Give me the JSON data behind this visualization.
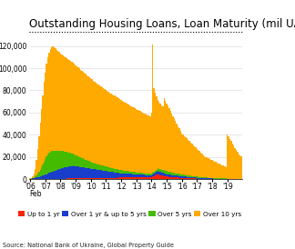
{
  "title": "Outstanding Housing Loans, Loan Maturity (mil UAH)",
  "source": "Source: National Bank of Ukraine, Global Property Guide",
  "xlabel_note": "Feb",
  "colors": {
    "up_to_1yr": "#ff2200",
    "1yr_to_5yr": "#1a3ecc",
    "over_5yr": "#44bb00",
    "over_10yr": "#ffaa00"
  },
  "legend_labels": [
    "Up to 1 yr",
    "Over 1 yr & up to 5 yrs",
    "Over 5 yrs",
    "Over 10 yrs"
  ],
  "yticks": [
    0,
    20000,
    40000,
    60000,
    80000,
    100000,
    120000
  ],
  "background_color": "#ffffff",
  "title_fontsize": 8.5,
  "years": [
    "'06",
    "'07",
    "'08",
    "'09",
    "'10",
    "'11",
    "'12",
    "'13",
    "'14",
    "'15",
    "'16",
    "'17",
    "'18",
    "'19"
  ],
  "year_positions": [
    0,
    12,
    24,
    36,
    48,
    60,
    72,
    84,
    96,
    108,
    120,
    132,
    144,
    156
  ],
  "data_up1": [
    150,
    160,
    170,
    180,
    200,
    210,
    220,
    230,
    240,
    250,
    260,
    280,
    300,
    320,
    340,
    360,
    380,
    400,
    420,
    440,
    460,
    480,
    500,
    520,
    540,
    560,
    580,
    600,
    620,
    640,
    660,
    680,
    700,
    720,
    740,
    760,
    780,
    800,
    820,
    840,
    860,
    880,
    900,
    920,
    940,
    960,
    980,
    1000,
    1020,
    1040,
    1060,
    1080,
    1100,
    1120,
    1140,
    1160,
    1180,
    1200,
    1220,
    1240,
    1260,
    1280,
    1300,
    1320,
    1340,
    1360,
    1380,
    1400,
    1420,
    1440,
    1460,
    1480,
    1500,
    1520,
    1540,
    1560,
    1580,
    1600,
    1620,
    1640,
    1660,
    1680,
    1700,
    1720,
    1740,
    1760,
    1780,
    1800,
    1820,
    1840,
    1860,
    1880,
    1900,
    1920,
    1940,
    1960,
    2000,
    2500,
    3000,
    3500,
    4000,
    4500,
    4200,
    3900,
    3600,
    3300,
    3000,
    2800,
    2600,
    2400,
    2200,
    2100,
    2000,
    1900,
    1800,
    1700,
    1600,
    1500,
    1400,
    1300,
    1200,
    1150,
    1100,
    1050,
    1000,
    950,
    900,
    850,
    800,
    750,
    700,
    650,
    600,
    560,
    520,
    480,
    450,
    420,
    400,
    380,
    360,
    340,
    320,
    300,
    280,
    260,
    240,
    220,
    200,
    185,
    170,
    160,
    150,
    140,
    130,
    120,
    115,
    110,
    105,
    100,
    95,
    90,
    85,
    80,
    80,
    80,
    80,
    80
  ],
  "data_1to5": [
    200,
    300,
    500,
    700,
    1000,
    1300,
    1600,
    2000,
    2400,
    2800,
    3200,
    3600,
    4000,
    4400,
    4800,
    5200,
    5600,
    6000,
    6400,
    6800,
    7200,
    7600,
    8000,
    8400,
    8800,
    9200,
    9600,
    10000,
    10200,
    10400,
    10600,
    10800,
    11000,
    11200,
    11400,
    11200,
    11000,
    10800,
    10600,
    10400,
    10200,
    10000,
    9800,
    9600,
    9400,
    9200,
    9000,
    8800,
    8600,
    8400,
    8200,
    8000,
    7800,
    7600,
    7400,
    7200,
    7000,
    6800,
    6600,
    6400,
    6200,
    6000,
    5800,
    5600,
    5400,
    5200,
    5000,
    4800,
    4600,
    4400,
    4200,
    4000,
    3900,
    3800,
    3700,
    3600,
    3500,
    3400,
    3300,
    3200,
    3100,
    3000,
    2900,
    2800,
    2700,
    2600,
    2500,
    2400,
    2300,
    2200,
    2100,
    2000,
    1950,
    1900,
    1850,
    1800,
    1900,
    2000,
    2200,
    2400,
    2600,
    2800,
    2700,
    2600,
    2500,
    2400,
    2300,
    2200,
    2100,
    2000,
    1950,
    1900,
    1850,
    1800,
    1750,
    1700,
    1650,
    1600,
    1550,
    1500,
    1450,
    1400,
    1350,
    1300,
    1250,
    1200,
    1150,
    1100,
    1050,
    1000,
    950,
    900,
    850,
    800,
    750,
    700,
    650,
    600,
    560,
    520,
    480,
    440,
    420,
    400,
    380,
    360,
    340,
    320,
    300,
    280,
    260,
    240,
    220,
    200,
    185,
    170,
    160,
    150,
    140,
    130,
    120,
    110,
    100,
    95,
    90,
    85,
    80,
    80
  ],
  "data_5to10": [
    100,
    200,
    400,
    700,
    1200,
    2000,
    3000,
    4500,
    6000,
    8000,
    10000,
    12000,
    14000,
    16000,
    17500,
    18500,
    19000,
    19200,
    19000,
    18500,
    18000,
    17500,
    17000,
    16500,
    16000,
    15500,
    15000,
    14500,
    14000,
    13500,
    13000,
    12500,
    12000,
    11500,
    11000,
    10500,
    10000,
    9500,
    9200,
    8900,
    8600,
    8300,
    8000,
    7700,
    7400,
    7100,
    6800,
    6500,
    6200,
    5900,
    5600,
    5400,
    5200,
    5000,
    4800,
    4600,
    4500,
    4400,
    4300,
    4200,
    4100,
    4000,
    3900,
    3800,
    3700,
    3600,
    3500,
    3400,
    3300,
    3200,
    3100,
    3000,
    2900,
    2800,
    2700,
    2600,
    2500,
    2400,
    2300,
    2200,
    2100,
    2000,
    1950,
    1900,
    1850,
    1800,
    1750,
    1700,
    1650,
    1600,
    1550,
    1500,
    1450,
    1400,
    1350,
    1300,
    1400,
    1600,
    1800,
    2000,
    2200,
    2400,
    2500,
    2600,
    2700,
    2800,
    3000,
    2900,
    2800,
    2700,
    2600,
    2500,
    2400,
    2300,
    2200,
    2100,
    2000,
    1900,
    1800,
    1700,
    1600,
    1550,
    1500,
    1450,
    1400,
    1350,
    1300,
    1250,
    1200,
    1150,
    1100,
    1050,
    1000,
    960,
    920,
    880,
    840,
    800,
    760,
    720,
    680,
    640,
    620,
    600,
    580,
    560,
    540,
    520,
    500,
    480,
    460,
    440,
    420,
    400,
    380,
    360,
    340,
    320,
    300,
    280,
    260,
    240,
    220,
    200,
    200,
    200,
    200,
    200
  ],
  "data_over10": [
    300,
    600,
    1500,
    3500,
    7000,
    14000,
    22000,
    32000,
    42000,
    52000,
    62000,
    72000,
    78000,
    83000,
    87000,
    90000,
    92000,
    93000,
    93500,
    93000,
    92000,
    91000,
    90000,
    89000,
    88000,
    87000,
    86000,
    85500,
    85000,
    84500,
    84000,
    83500,
    83000,
    82500,
    82000,
    81500,
    81000,
    80500,
    80000,
    79500,
    79000,
    78500,
    78000,
    77500,
    77000,
    76500,
    76000,
    75500,
    75000,
    74500,
    74000,
    73500,
    73000,
    72500,
    72000,
    71500,
    71000,
    70500,
    70000,
    69500,
    69000,
    68500,
    68000,
    67500,
    67000,
    66500,
    66000,
    65500,
    65000,
    64500,
    64000,
    63500,
    63000,
    62500,
    62000,
    61500,
    61000,
    60500,
    60000,
    59500,
    59000,
    58500,
    58000,
    57500,
    57000,
    56500,
    56000,
    55500,
    55000,
    54500,
    54000,
    53500,
    53000,
    52500,
    52000,
    51500,
    55000,
    115000,
    75000,
    70000,
    66000,
    62000,
    60000,
    59000,
    58000,
    57000,
    65000,
    63000,
    61000,
    59000,
    57000,
    55000,
    53000,
    51000,
    49000,
    47000,
    45000,
    43000,
    41000,
    39000,
    37000,
    36000,
    35000,
    34000,
    33000,
    32000,
    31000,
    30000,
    29000,
    28000,
    27000,
    26000,
    25000,
    24000,
    23000,
    22000,
    21000,
    20000,
    19000,
    18500,
    18000,
    17500,
    17000,
    16500,
    16000,
    15500,
    15000,
    14500,
    14000,
    13500,
    13000,
    12500,
    12000,
    11500,
    11000,
    10500,
    40000,
    38000,
    36000,
    34000,
    32000,
    30000,
    28000,
    26000,
    24000,
    22000,
    21000,
    20000
  ]
}
